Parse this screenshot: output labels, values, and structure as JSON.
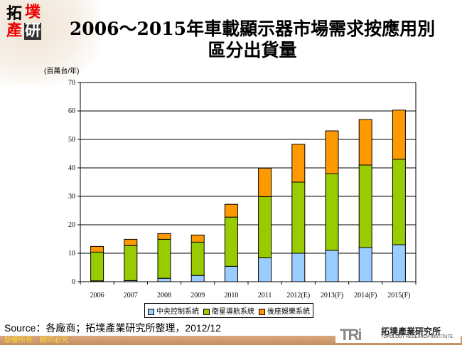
{
  "logo": {
    "chars": [
      "拓",
      "墣",
      "產",
      "研"
    ]
  },
  "title": {
    "line1": "2006～2015年車載顯示器市場需求按應用別",
    "line2": "區分出貨量"
  },
  "chart_data": {
    "type": "bar",
    "stacked": true,
    "unit_label": "(百萬台/年)",
    "categories": [
      "2006",
      "2007",
      "2008",
      "2009",
      "2010",
      "2011",
      "2012(E)",
      "2013(F)",
      "2014(F)",
      "2015(F)"
    ],
    "series": [
      {
        "name": "中央控制系統",
        "color": "#99ccff",
        "values": [
          0.3,
          0.4,
          1.2,
          2.2,
          5.4,
          8.4,
          10,
          11,
          12,
          13
        ]
      },
      {
        "name": "衛星導航系統",
        "color": "#99cc00",
        "values": [
          10.1,
          12.3,
          13.7,
          11.7,
          17.3,
          21.5,
          25,
          27,
          29,
          30
        ]
      },
      {
        "name": "後座娛樂系統",
        "color": "#ff9900",
        "values": [
          2,
          2.2,
          2,
          2.5,
          4.5,
          10,
          13.3,
          15,
          16,
          17.3
        ]
      }
    ],
    "ylim": [
      0,
      70
    ],
    "yticks": [
      0,
      10,
      20,
      30,
      40,
      50,
      60,
      70
    ],
    "grid": true,
    "legend_position": "bottom"
  },
  "source": "Source：各廠商；拓墣產業研究所整理，2012/12",
  "footer": {
    "copyright": "版權所有．翻印必究",
    "org_abbr": "TRi",
    "org_name": "拓墣產業研究所",
    "org_name_en": "TOPOLOGY RESEARCH INSTITUTE"
  }
}
